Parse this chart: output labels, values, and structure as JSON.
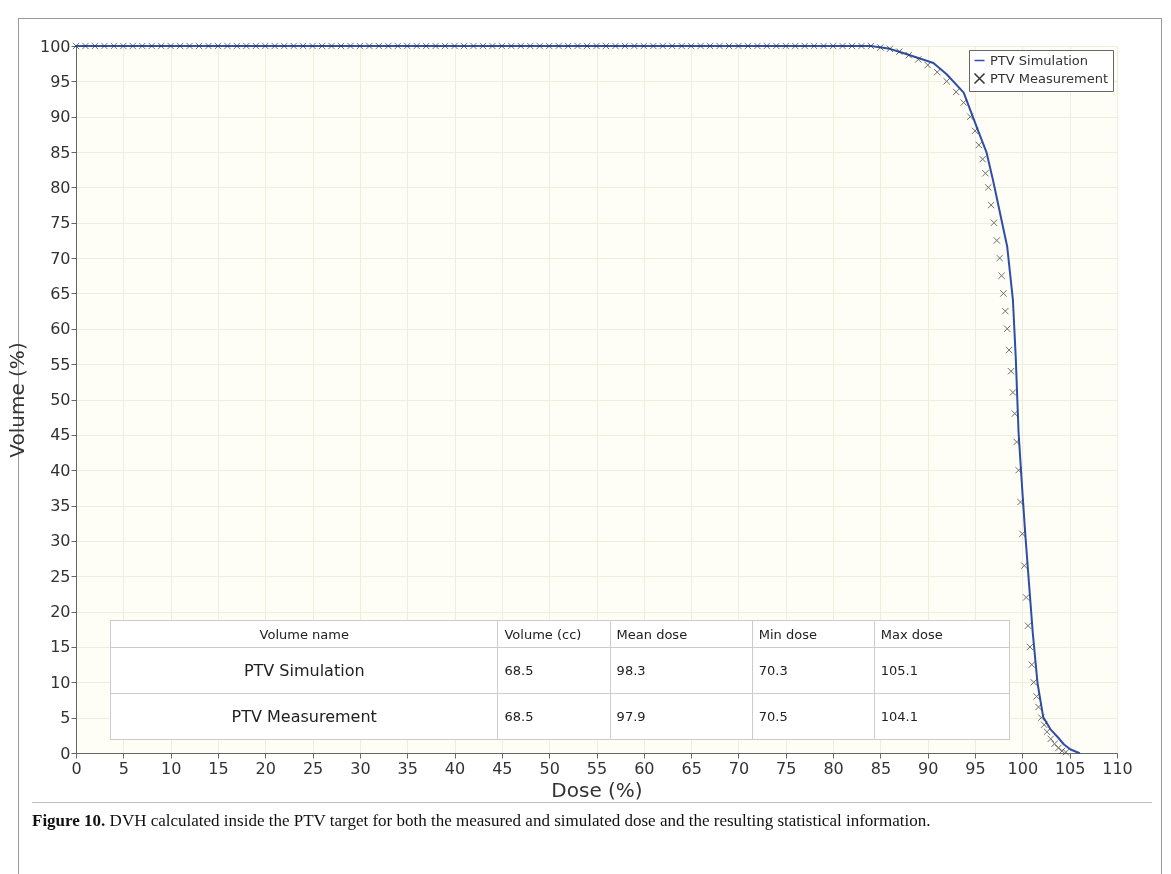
{
  "chart_data": {
    "type": "line",
    "xlabel": "Dose (%)",
    "ylabel": "Volume (%)",
    "xlim": [
      0,
      110
    ],
    "ylim": [
      0,
      100
    ],
    "xticks": [
      0,
      5,
      10,
      15,
      20,
      25,
      30,
      35,
      40,
      45,
      50,
      55,
      60,
      65,
      70,
      75,
      80,
      85,
      90,
      95,
      100,
      105,
      110
    ],
    "yticks": [
      0,
      5,
      10,
      15,
      20,
      25,
      30,
      35,
      40,
      45,
      50,
      55,
      60,
      65,
      70,
      75,
      80,
      85,
      90,
      95,
      100
    ],
    "grid": true,
    "legend": "top right",
    "series": [
      {
        "name": "PTV Simulation",
        "type": "line",
        "marker": "none",
        "color": "#2f4ea8",
        "x": [
          0,
          84,
          86,
          87.4,
          89,
          90.6,
          92,
          93.8,
          95.3,
          96.2,
          96.9,
          97.7,
          98.4,
          99,
          99.3,
          99.6,
          100,
          100.3,
          100.7,
          101.1,
          101.6,
          102.2,
          103,
          103.7,
          104.4,
          105.1,
          106
        ],
        "values": [
          100,
          100,
          99.6,
          99,
          98.3,
          97.6,
          96,
          93.4,
          88.1,
          85,
          81,
          76,
          71.6,
          64.1,
          56,
          45.3,
          37,
          31.1,
          24,
          17,
          9.9,
          5.1,
          3.3,
          2.3,
          1.2,
          0.5,
          0
        ]
      },
      {
        "name": "PTV Measurement",
        "type": "scatter",
        "marker": "cross",
        "color": "#333333",
        "x": [
          0,
          1,
          2,
          3,
          4,
          5,
          6,
          7,
          8,
          9,
          10,
          11,
          12,
          13,
          14,
          15,
          16,
          17,
          18,
          19,
          20,
          21,
          22,
          23,
          24,
          25,
          26,
          27,
          28,
          29,
          30,
          31,
          32,
          33,
          34,
          35,
          36,
          37,
          38,
          39,
          40,
          41,
          42,
          43,
          44,
          45,
          46,
          47,
          48,
          49,
          50,
          51,
          52,
          53,
          54,
          55,
          56,
          57,
          58,
          59,
          60,
          61,
          62,
          63,
          64,
          65,
          66,
          67,
          68,
          69,
          70,
          71,
          72,
          73,
          74,
          75,
          76,
          77,
          78,
          79,
          80,
          81,
          82,
          83,
          84,
          85,
          86,
          87,
          88,
          89,
          90,
          91,
          92,
          93,
          93.8,
          94.5,
          95,
          95.4,
          95.8,
          96.1,
          96.4,
          96.7,
          97,
          97.3,
          97.6,
          97.8,
          98,
          98.2,
          98.4,
          98.6,
          98.8,
          99,
          99.2,
          99.4,
          99.6,
          99.8,
          100,
          100.2,
          100.4,
          100.6,
          100.8,
          101,
          101.2,
          101.5,
          101.7,
          102,
          102.3,
          102.6,
          103,
          103.4,
          103.8,
          104.2,
          104.6
        ],
        "values": [
          100,
          100,
          100,
          100,
          100,
          100,
          100,
          100,
          100,
          100,
          100,
          100,
          100,
          100,
          100,
          100,
          100,
          100,
          100,
          100,
          100,
          100,
          100,
          100,
          100,
          100,
          100,
          100,
          100,
          100,
          100,
          100,
          100,
          100,
          100,
          100,
          100,
          100,
          100,
          100,
          100,
          100,
          100,
          100,
          100,
          100,
          100,
          100,
          100,
          100,
          100,
          100,
          100,
          100,
          100,
          100,
          100,
          100,
          100,
          100,
          100,
          100,
          100,
          100,
          100,
          100,
          100,
          100,
          100,
          100,
          100,
          100,
          100,
          100,
          100,
          100,
          100,
          100,
          100,
          100,
          100,
          100,
          100,
          100,
          100,
          99.8,
          99.6,
          99.2,
          98.7,
          98.1,
          97.3,
          96.3,
          95,
          93.5,
          92,
          90,
          88,
          86,
          84,
          82,
          80,
          77.5,
          75,
          72.5,
          70,
          67.5,
          65,
          62.5,
          60,
          57,
          54,
          51,
          48,
          44,
          40,
          35.5,
          31,
          26.5,
          22,
          18,
          15,
          12.5,
          10,
          8,
          6.5,
          5,
          4,
          3,
          2,
          1.3,
          0.7,
          0.3,
          0.1
        ]
      }
    ],
    "annotations": [
      "Volume name",
      "Volume (cc)",
      "Mean dose",
      "Min dose",
      "Max dose",
      "PTV Simulation",
      "68.5",
      "98.3",
      "70.3",
      "105.1",
      "PTV Measurement",
      "68.5",
      "97.9",
      "70.5",
      "104.1",
      "Figure 10. DVH calculated inside the PTV target for both the measured and simulated dose and the resulting statistical information."
    ]
  }
}
